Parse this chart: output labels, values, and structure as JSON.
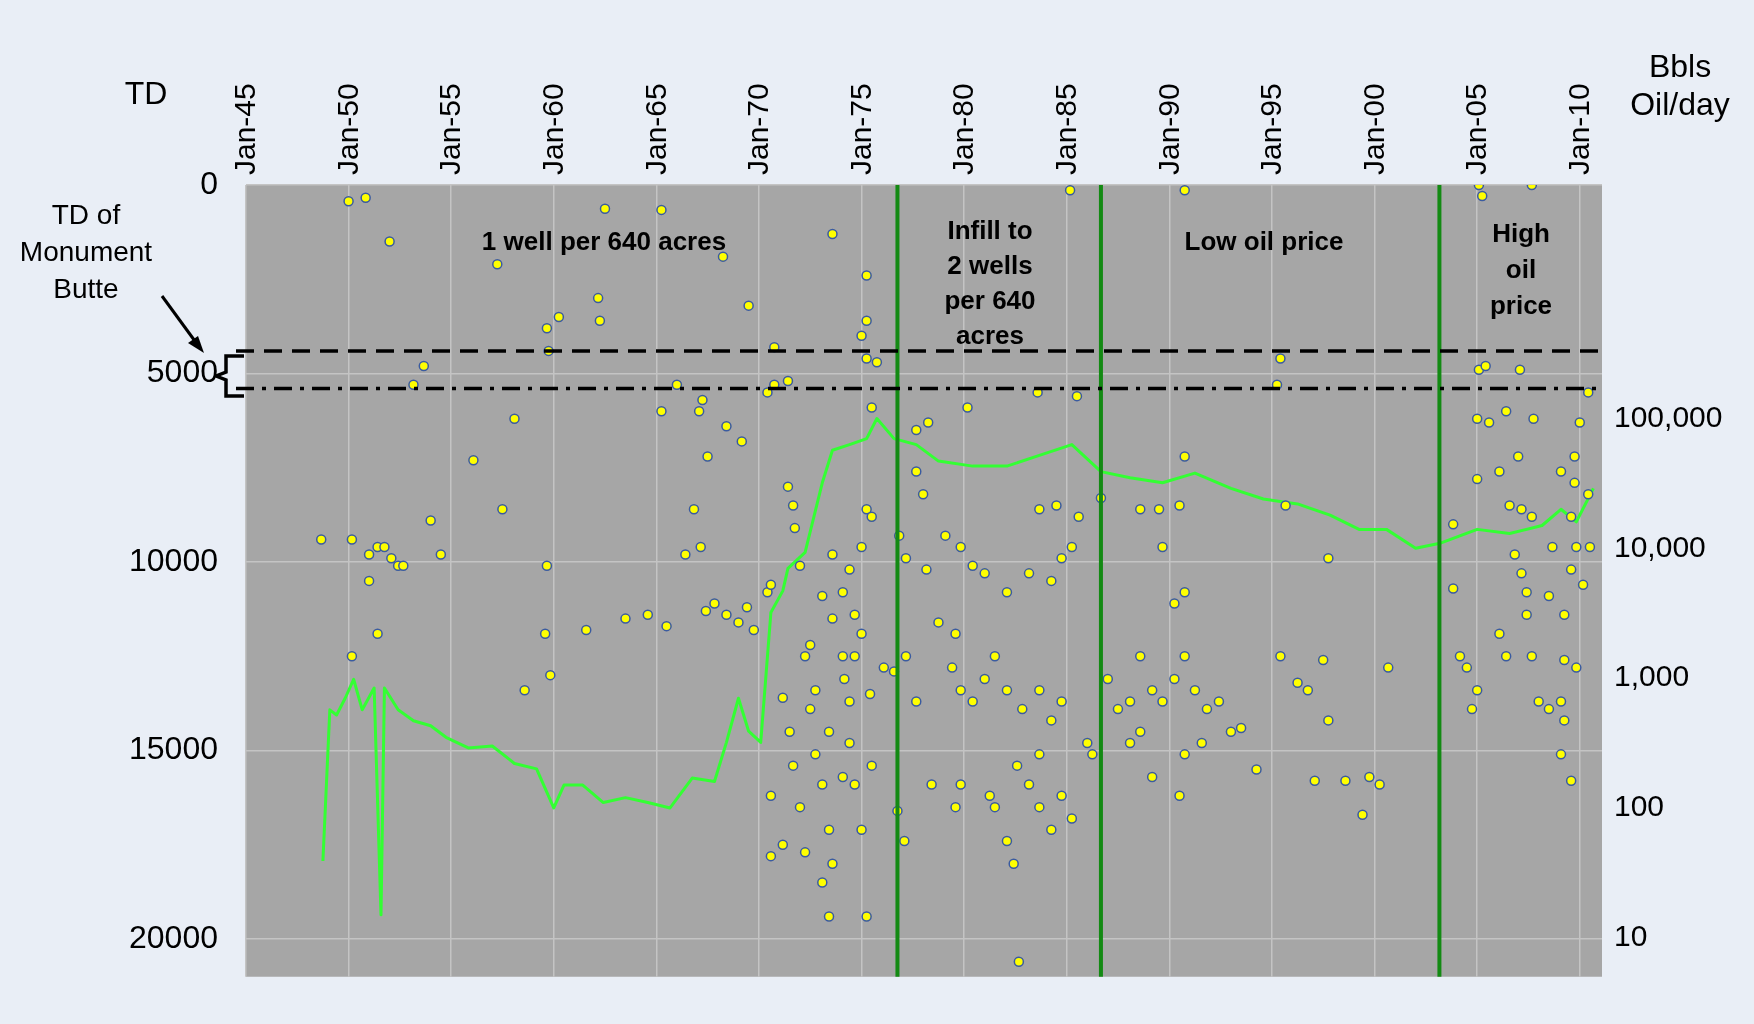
{
  "chart_data": {
    "type": "scatter",
    "ylabel": "TD",
    "y2label": "Bbls\nOil/day",
    "marker": "circle",
    "grid": true,
    "log": "y2",
    "xlim": [
      "1945-01",
      "2011-02"
    ],
    "xticks": [
      {
        "value": "1945-01",
        "label": "Jan-45"
      },
      {
        "value": "1950-01",
        "label": "Jan-50"
      },
      {
        "value": "1955-01",
        "label": "Jan-55"
      },
      {
        "value": "1960-01",
        "label": "Jan-60"
      },
      {
        "value": "1965-01",
        "label": "Jan-65"
      },
      {
        "value": "1970-01",
        "label": "Jan-70"
      },
      {
        "value": "1975-01",
        "label": "Jan-75"
      },
      {
        "value": "1980-01",
        "label": "Jan-80"
      },
      {
        "value": "1985-01",
        "label": "Jan-85"
      },
      {
        "value": "1990-01",
        "label": "Jan-90"
      },
      {
        "value": "1995-01",
        "label": "Jan-95"
      },
      {
        "value": "2000-01",
        "label": "Jan-00"
      },
      {
        "value": "2005-01",
        "label": "Jan-05"
      },
      {
        "value": "2010-01",
        "label": "Jan-10"
      }
    ],
    "ylim": [
      21000,
      0
    ],
    "yticks": [
      0,
      5000,
      10000,
      15000,
      20000
    ],
    "y2lim": [
      5,
      6300000
    ],
    "y2ticks": [
      {
        "value": 10,
        "label": "10"
      },
      {
        "value": 100,
        "label": "100"
      },
      {
        "value": 1000,
        "label": "1,000"
      },
      {
        "value": 10000,
        "label": "10,000"
      },
      {
        "value": 100000,
        "label": "100,000"
      }
    ],
    "series": [
      {
        "type": "scatter",
        "color": "#ffff00",
        "x": [
          "1950-01",
          "1950-11",
          "1952-01",
          "1957-04",
          "1962-07",
          "1965-04",
          "1968-04",
          "1962-03",
          "1962-04",
          "1959-09",
          "1960-04",
          "1959-10",
          "1953-09",
          "1953-03",
          "1956-02",
          "1958-02",
          "1957-07",
          "1948-09",
          "1950-03",
          "1950-03",
          "1951-01",
          "1951-06",
          "1951-10",
          "1952-02",
          "1952-06",
          "1952-09",
          "1951-06",
          "1951-01",
          "1954-01",
          "1954-07",
          "1959-09",
          "1959-08",
          "1959-11",
          "1958-08",
          "1961-08",
          "1963-07",
          "1964-08",
          "1965-07",
          "1966-06",
          "1967-03",
          "1966-11",
          "1967-07",
          "1967-02",
          "1967-04",
          "1966-01",
          "1965-04",
          "1968-06",
          "1969-03",
          "1969-07",
          "1970-10",
          "1970-10",
          "1971-06",
          "1970-06",
          "1967-06",
          "1967-11",
          "1968-06",
          "1969-01",
          "1969-06",
          "1969-10",
          "1970-06",
          "1970-08",
          "1971-06",
          "1971-09",
          "1971-10",
          "1972-01",
          "1972-04",
          "1972-07",
          "1972-10",
          "1973-02",
          "1973-06",
          "1973-08",
          "1971-03",
          "1971-07",
          "1971-09",
          "1972-01",
          "1970-08",
          "1970-08",
          "1971-03",
          "1972-04",
          "1973-02",
          "1973-06",
          "1974-02",
          "1974-03",
          "1974-06",
          "1974-09",
          "1975-01",
          "1974-02",
          "1974-06",
          "1975-01",
          "1975-04",
          "1975-07",
          "1974-06",
          "1974-09",
          "1975-01",
          "1975-07",
          "1975-06",
          "1976-02",
          "1976-08",
          "1976-10",
          "1977-02",
          "1975-04",
          "1974-02",
          "1973-06",
          "1972-10",
          "1972-07",
          "1973-08",
          "1973-02",
          "1973-08",
          "1974-09",
          "1975-04",
          "1975-04",
          "1975-01",
          "1975-04",
          "1975-10",
          "1975-07",
          "1973-08",
          "1977-09",
          "1978-04",
          "1977-09",
          "1978-01",
          "1976-11",
          "1977-03",
          "1978-03",
          "1979-02",
          "1979-11",
          "1980-06",
          "1981-01",
          "1978-10",
          "1979-08",
          "1979-06",
          "1979-11",
          "1980-06",
          "1981-01",
          "1981-07",
          "1982-02",
          "1982-11",
          "1983-09",
          "1984-04",
          "1984-10",
          "1983-09",
          "1982-08",
          "1983-03",
          "1983-09",
          "1984-04",
          "1984-10",
          "1985-04",
          "1981-04",
          "1981-07",
          "1979-11",
          "1979-08",
          "1982-02",
          "1982-06",
          "1982-09",
          "1982-02",
          "1983-03",
          "1984-04",
          "1984-10",
          "1985-04",
          "1985-08",
          "1983-09",
          "1984-07",
          "1985-03",
          "1983-08",
          "1985-07",
          "1980-03",
          "1978-06",
          "1977-09",
          "1977-03",
          "1986-01",
          "1986-04",
          "1986-09",
          "1987-01",
          "1987-07",
          "1988-02",
          "1988-08",
          "1989-03",
          "1989-09",
          "1990-04",
          "1990-10",
          "1991-04",
          "1991-11",
          "1992-06",
          "1990-04",
          "1990-10",
          "1989-09",
          "1989-07",
          "1990-07",
          "1990-10",
          "1988-08",
          "1990-10",
          "1989-03",
          "1990-07",
          "1990-10",
          "1991-08",
          "1993-01",
          "1993-07",
          "1994-04",
          "1988-08",
          "1988-02",
          "1995-06",
          "1995-04",
          "1995-09",
          "1995-06",
          "1996-04",
          "1996-10",
          "1997-07",
          "1997-10",
          "1997-10",
          "1997-02",
          "1998-08",
          "1999-06",
          "1999-10",
          "2000-04",
          "2000-09",
          "2003-11",
          "2003-11",
          "2004-03",
          "2004-07",
          "2004-10",
          "2005-01",
          "2005-02",
          "2005-04",
          "2007-09",
          "2005-02",
          "2005-06",
          "2007-02",
          "2005-01",
          "2005-08",
          "2006-06",
          "2007-01",
          "2007-10",
          "2005-01",
          "2006-02",
          "2006-08",
          "2007-03",
          "2007-09",
          "2006-11",
          "2007-03",
          "2007-06",
          "2006-02",
          "2006-06",
          "2007-06",
          "2007-09",
          "2008-01",
          "2008-07",
          "2009-02",
          "2009-04",
          "2009-02",
          "2009-08",
          "2009-04",
          "2009-08",
          "2009-11",
          "2009-08",
          "2009-10",
          "2009-10",
          "2010-01",
          "2010-06",
          "2010-06",
          "2010-07",
          "2010-03",
          "2009-04",
          "2009-11",
          "2008-07",
          "2008-09",
          "2009-02"
        ],
        "values": [
          430,
          340,
          1500,
          2100,
          630,
          660,
          1900,
          3000,
          3600,
          3800,
          3500,
          4400,
          4800,
          5300,
          7300,
          6200,
          8600,
          9400,
          9400,
          12500,
          9800,
          9600,
          9600,
          9900,
          10100,
          10100,
          11900,
          10500,
          8900,
          9800,
          10100,
          11900,
          13000,
          13400,
          11800,
          11500,
          11400,
          11700,
          9800,
          9600,
          8600,
          7200,
          6000,
          5700,
          5300,
          6000,
          6400,
          6800,
          3200,
          4300,
          5300,
          5200,
          5500,
          11300,
          11100,
          11400,
          11600,
          11200,
          11800,
          10800,
          10600,
          8000,
          8500,
          9100,
          10100,
          12500,
          13900,
          15100,
          15900,
          17100,
          18000,
          13600,
          14500,
          15400,
          16500,
          16200,
          17800,
          17500,
          17700,
          18500,
          19400,
          12500,
          13100,
          13700,
          12500,
          11900,
          10800,
          10200,
          9600,
          8600,
          8800,
          14800,
          15900,
          17100,
          15400,
          13500,
          12800,
          12900,
          16600,
          17400,
          19400,
          15700,
          14500,
          13400,
          12200,
          11500,
          10900,
          9800,
          11400,
          2400,
          3600,
          4000,
          4600,
          4700,
          5900,
          1300,
          6500,
          6300,
          7600,
          8200,
          9300,
          9900,
          10200,
          9300,
          9600,
          10100,
          10300,
          11600,
          11900,
          12800,
          13400,
          13700,
          13100,
          12500,
          13400,
          13900,
          13400,
          14200,
          13700,
          15100,
          15400,
          15900,
          16500,
          17100,
          16200,
          16800,
          16200,
          16500,
          15900,
          16500,
          17400,
          18000,
          20600,
          10800,
          10300,
          10500,
          9900,
          9600,
          8800,
          8600,
          8500,
          140,
          5500,
          5600,
          5900,
          15900,
          13700,
          12500,
          14800,
          15100,
          8300,
          13100,
          13900,
          13700,
          12500,
          13400,
          13700,
          13100,
          12500,
          13400,
          13900,
          13700,
          11100,
          10800,
          9600,
          8600,
          8500,
          7200,
          8600,
          140,
          15700,
          16200,
          15100,
          14800,
          14500,
          14400,
          15500,
          14500,
          14800,
          4600,
          5300,
          8500,
          12500,
          13200,
          13400,
          12600,
          14200,
          9900,
          15800,
          15800,
          16700,
          15700,
          15900,
          12800,
          9000,
          10700,
          12500,
          12800,
          13900,
          13400,
          0,
          290,
          0,
          4900,
          4800,
          4900,
          6200,
          6300,
          6000,
          7200,
          6200,
          7800,
          7600,
          8500,
          8600,
          8800,
          9800,
          10300,
          10800,
          11900,
          12500,
          11400,
          12500,
          13700,
          13900,
          13700,
          14200,
          15100,
          15800,
          11400,
          10200,
          9600,
          8800,
          7900,
          7200,
          6300,
          5500,
          8200,
          9600,
          10600,
          12600,
          12800,
          10900,
          9600,
          7600
        ]
      },
      {
        "type": "line",
        "axis": "y2",
        "color": "#33ff33",
        "marker": "none",
        "x": [
          "1948-10",
          "1949-02",
          "1949-06",
          "1949-11",
          "1950-04",
          "1950-09",
          "1951-04",
          "1951-08",
          "1951-10",
          "1952-06",
          "1953-03",
          "1954-01",
          "1954-10",
          "1955-11",
          "1957-01",
          "1958-02",
          "1959-03",
          "1960-01",
          "1960-07",
          "1961-06",
          "1962-06",
          "1963-07",
          "1964-08",
          "1965-09",
          "1966-10",
          "1967-11",
          "1968-06",
          "1969-01",
          "1969-07",
          "1970-02",
          "1970-08",
          "1971-03",
          "1971-06",
          "1972-04",
          "1973-02",
          "1973-08",
          "1974-06",
          "1975-04",
          "1975-10",
          "1976-08",
          "1977-09",
          "1978-10",
          "1980-06",
          "1982-02",
          "1983-09",
          "1985-04",
          "1986-09",
          "1988-02",
          "1989-09",
          "1991-04",
          "1993-01",
          "1994-08",
          "1996-04",
          "1997-11",
          "1999-04",
          "2000-08",
          "2002-01",
          "2003-04",
          "2005-01",
          "2006-08",
          "2008-03",
          "2009-02",
          "2009-11",
          "2010-09"
        ],
        "values": [
          39,
          570,
          520,
          700,
          980,
          570,
          840,
          15,
          840,
          570,
          470,
          430,
          350,
          290,
          300,
          220,
          200,
          100,
          150,
          150,
          110,
          120,
          110,
          100,
          170,
          160,
          320,
          700,
          390,
          320,
          3200,
          4700,
          7000,
          9300,
          32000,
          57000,
          63000,
          70000,
          100000,
          70000,
          63000,
          47000,
          43000,
          43000,
          52000,
          63000,
          39000,
          35000,
          32000,
          38000,
          29000,
          24000,
          22000,
          18000,
          14000,
          14000,
          10000,
          11000,
          14000,
          13000,
          15000,
          20000,
          16000,
          29000
        ]
      }
    ],
    "ref_lines": [
      {
        "axis": "x",
        "value": "1976-10",
        "color": "#138a13",
        "line_style": "solid"
      },
      {
        "axis": "x",
        "value": "1986-09",
        "color": "#138a13",
        "line_style": "solid"
      },
      {
        "axis": "x",
        "value": "2003-03",
        "color": "#138a13",
        "line_style": "solid"
      },
      {
        "axis": "y",
        "value": 4400,
        "color": "#000000",
        "line_style": "dashed"
      },
      {
        "axis": "y",
        "value": 5400,
        "color": "#000000",
        "line_style": "dashdot"
      }
    ],
    "annotations": [
      "TD of\nMonument\nButte",
      "1 well per 640 acres",
      "Infill to\n2 wells\nper 640\nacres",
      "Low oil price",
      "High\noil\nprice"
    ]
  }
}
